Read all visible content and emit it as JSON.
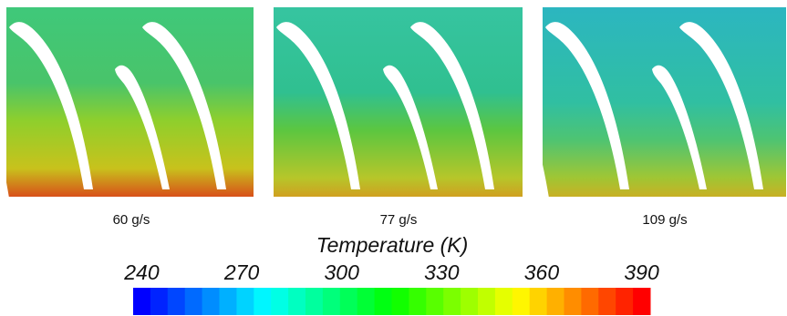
{
  "panels": [
    {
      "label": "60 g/s"
    },
    {
      "label": "77 g/s"
    },
    {
      "label": "109 g/s"
    }
  ],
  "colorbar": {
    "title": "Temperature (K)",
    "ticks": [
      240,
      270,
      300,
      330,
      360,
      390
    ]
  }
}
